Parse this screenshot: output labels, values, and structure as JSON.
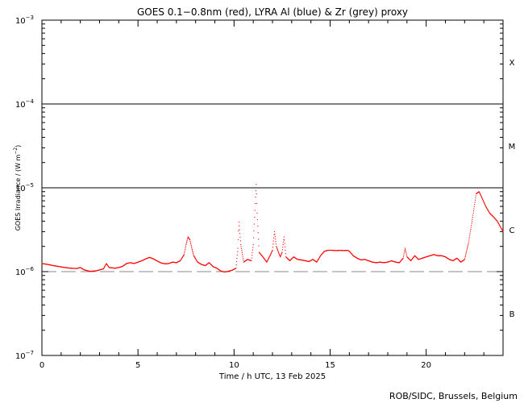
{
  "chart_data": {
    "type": "scatter",
    "title": "GOES 0.1−0.8nm (red), LYRA Al (blue) & Zr (grey) proxy",
    "xlabel": "Time / h UTC, 13 Feb 2025",
    "ylabel_base": "GOES Irradiance / (W m",
    "ylabel_exp": "−2",
    "ylabel_end": ")",
    "credit": "ROB/SIDC, Brussels, Belgium",
    "xlim": [
      0,
      24
    ],
    "ylim": [
      1e-07,
      0.001
    ],
    "yscale": "log",
    "x_ticks": [
      {
        "value": 0,
        "label": "0"
      },
      {
        "value": 5,
        "label": "5"
      },
      {
        "value": 10,
        "label": "10"
      },
      {
        "value": 15,
        "label": "15"
      },
      {
        "value": 20,
        "label": "20"
      }
    ],
    "y_ticks": [
      {
        "value": 1e-07,
        "base": "10",
        "exp": "−7"
      },
      {
        "value": 1e-06,
        "base": "10",
        "exp": "−6"
      },
      {
        "value": 1e-05,
        "base": "10",
        "exp": "−5"
      },
      {
        "value": 0.0001,
        "base": "10",
        "exp": "−4"
      },
      {
        "value": 0.001,
        "base": "10",
        "exp": "−3"
      }
    ],
    "flare_thresholds": [
      0.0001,
      1e-05
    ],
    "dashed_level": 1e-06,
    "flare_classes": [
      {
        "label": "X",
        "value": 0.000316
      },
      {
        "label": "M",
        "value": 3.16e-05
      },
      {
        "label": "C",
        "value": 3.16e-06
      },
      {
        "label": "B",
        "value": 3.16e-07
      }
    ],
    "series": [
      {
        "color": "#ff0000",
        "points": [
          [
            0.0,
            1.25e-06
          ],
          [
            0.3,
            1.22e-06
          ],
          [
            0.6,
            1.18e-06
          ],
          [
            0.9,
            1.15e-06
          ],
          [
            1.2,
            1.12e-06
          ],
          [
            1.5,
            1.1e-06
          ],
          [
            1.8,
            1.09e-06
          ],
          [
            2.0,
            1.12e-06
          ],
          [
            2.2,
            1.05e-06
          ],
          [
            2.5,
            1.01e-06
          ],
          [
            2.8,
            1.02e-06
          ],
          [
            3.0,
            1.05e-06
          ],
          [
            3.2,
            1.08e-06
          ],
          [
            3.35,
            1.25e-06
          ],
          [
            3.5,
            1.12e-06
          ],
          [
            3.8,
            1.1e-06
          ],
          [
            4.0,
            1.12e-06
          ],
          [
            4.2,
            1.16e-06
          ],
          [
            4.4,
            1.25e-06
          ],
          [
            4.6,
            1.28e-06
          ],
          [
            4.8,
            1.25e-06
          ],
          [
            5.0,
            1.3e-06
          ],
          [
            5.2,
            1.35e-06
          ],
          [
            5.4,
            1.42e-06
          ],
          [
            5.6,
            1.48e-06
          ],
          [
            5.8,
            1.42e-06
          ],
          [
            6.0,
            1.34e-06
          ],
          [
            6.2,
            1.27e-06
          ],
          [
            6.4,
            1.24e-06
          ],
          [
            6.6,
            1.25e-06
          ],
          [
            6.8,
            1.3e-06
          ],
          [
            7.0,
            1.28e-06
          ],
          [
            7.2,
            1.35e-06
          ],
          [
            7.4,
            1.6e-06
          ],
          [
            7.5,
            2.1e-06
          ],
          [
            7.6,
            2.6e-06
          ],
          [
            7.7,
            2.4e-06
          ],
          [
            7.8,
            1.9e-06
          ],
          [
            7.9,
            1.55e-06
          ],
          [
            8.1,
            1.3e-06
          ],
          [
            8.3,
            1.22e-06
          ],
          [
            8.5,
            1.18e-06
          ],
          [
            8.7,
            1.28e-06
          ],
          [
            8.9,
            1.15e-06
          ],
          [
            9.1,
            1.1e-06
          ],
          [
            9.3,
            1.02e-06
          ],
          [
            9.5,
            9.9e-07
          ],
          [
            9.7,
            1.01e-06
          ],
          [
            9.9,
            1.04e-06
          ],
          [
            10.1,
            1.1e-06
          ],
          [
            10.2,
            1.9e-06
          ],
          [
            10.25,
            3.9e-06
          ],
          [
            10.35,
            2.1e-06
          ],
          [
            10.5,
            1.3e-06
          ],
          [
            10.7,
            1.4e-06
          ],
          [
            10.9,
            1.35e-06
          ],
          [
            11.0,
            2.1e-06
          ],
          [
            11.1,
            6.5e-06
          ],
          [
            11.15,
            1.1e-05
          ],
          [
            11.2,
            5e-06
          ],
          [
            11.3,
            1.7e-06
          ],
          [
            11.5,
            1.5e-06
          ],
          [
            11.7,
            1.3e-06
          ],
          [
            11.9,
            1.6e-06
          ],
          [
            12.0,
            1.8e-06
          ],
          [
            12.1,
            3e-06
          ],
          [
            12.2,
            2e-06
          ],
          [
            12.4,
            1.5e-06
          ],
          [
            12.5,
            1.7e-06
          ],
          [
            12.6,
            2.6e-06
          ],
          [
            12.7,
            1.5e-06
          ],
          [
            12.9,
            1.35e-06
          ],
          [
            13.1,
            1.5e-06
          ],
          [
            13.3,
            1.4e-06
          ],
          [
            13.5,
            1.38e-06
          ],
          [
            13.7,
            1.35e-06
          ],
          [
            13.9,
            1.32e-06
          ],
          [
            14.1,
            1.4e-06
          ],
          [
            14.3,
            1.3e-06
          ],
          [
            14.5,
            1.55e-06
          ],
          [
            14.7,
            1.75e-06
          ],
          [
            14.9,
            1.8e-06
          ],
          [
            15.1,
            1.8e-06
          ],
          [
            15.3,
            1.78e-06
          ],
          [
            15.5,
            1.8e-06
          ],
          [
            15.7,
            1.78e-06
          ],
          [
            15.9,
            1.8e-06
          ],
          [
            16.0,
            1.75e-06
          ],
          [
            16.2,
            1.55e-06
          ],
          [
            16.4,
            1.45e-06
          ],
          [
            16.6,
            1.38e-06
          ],
          [
            16.8,
            1.4e-06
          ],
          [
            17.0,
            1.35e-06
          ],
          [
            17.2,
            1.3e-06
          ],
          [
            17.4,
            1.28e-06
          ],
          [
            17.6,
            1.3e-06
          ],
          [
            17.8,
            1.28e-06
          ],
          [
            18.0,
            1.3e-06
          ],
          [
            18.2,
            1.35e-06
          ],
          [
            18.4,
            1.3e-06
          ],
          [
            18.6,
            1.28e-06
          ],
          [
            18.8,
            1.45e-06
          ],
          [
            18.9,
            1.9e-06
          ],
          [
            19.0,
            1.5e-06
          ],
          [
            19.2,
            1.35e-06
          ],
          [
            19.4,
            1.55e-06
          ],
          [
            19.6,
            1.4e-06
          ],
          [
            19.8,
            1.45e-06
          ],
          [
            20.0,
            1.5e-06
          ],
          [
            20.2,
            1.55e-06
          ],
          [
            20.4,
            1.6e-06
          ],
          [
            20.6,
            1.55e-06
          ],
          [
            20.8,
            1.55e-06
          ],
          [
            21.0,
            1.5e-06
          ],
          [
            21.2,
            1.4e-06
          ],
          [
            21.4,
            1.35e-06
          ],
          [
            21.6,
            1.45e-06
          ],
          [
            21.8,
            1.3e-06
          ],
          [
            22.0,
            1.4e-06
          ],
          [
            22.2,
            2.2e-06
          ],
          [
            22.4,
            4.2e-06
          ],
          [
            22.6,
            8.5e-06
          ],
          [
            22.75,
            9e-06
          ],
          [
            22.9,
            7.6e-06
          ],
          [
            23.1,
            6e-06
          ],
          [
            23.3,
            5e-06
          ],
          [
            23.5,
            4.5e-06
          ],
          [
            23.7,
            4e-06
          ],
          [
            23.9,
            3.3e-06
          ],
          [
            24.0,
            3e-06
          ]
        ]
      }
    ]
  }
}
